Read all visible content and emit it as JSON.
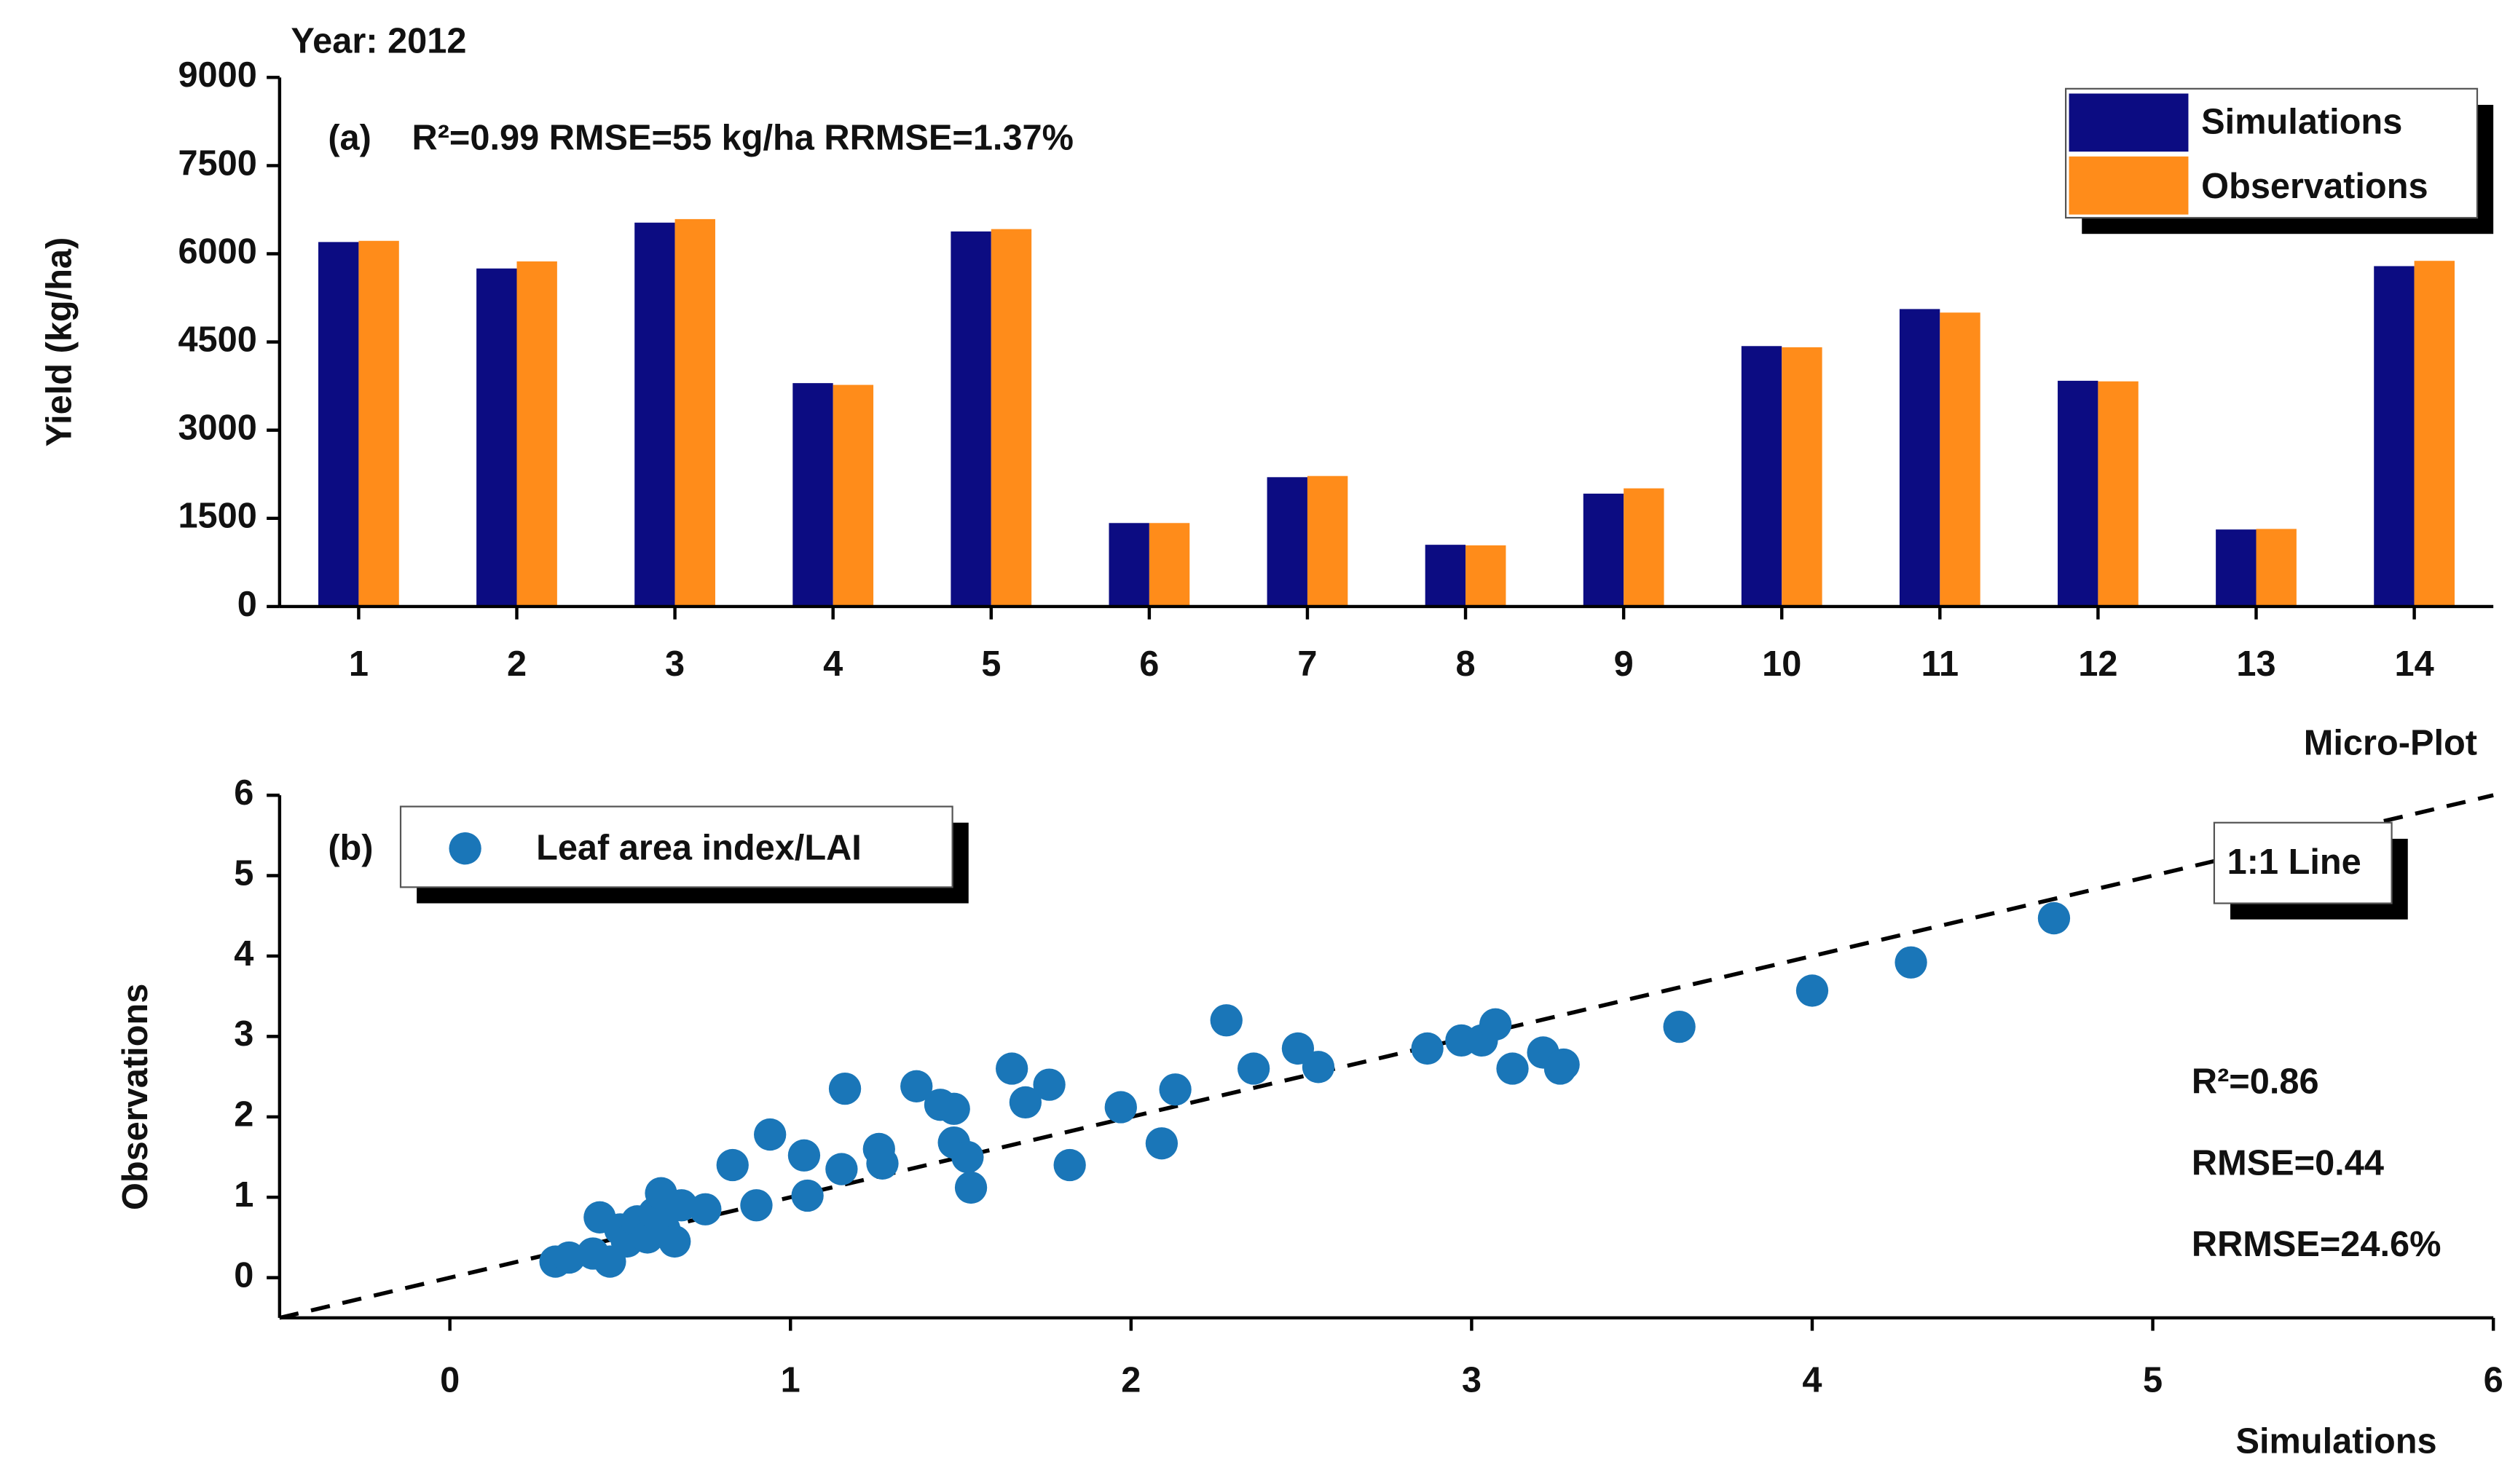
{
  "chart_data": [
    {
      "type": "bar",
      "title": "Year: 2012",
      "panel_label": "(a)",
      "annotation": "R²=0.99 RMSE=55 kg/ha RRMSE=1.37%",
      "x_label": "Micro-Plot",
      "y_label": "Yield (kg/ha)",
      "categories": [
        "1",
        "2",
        "3",
        "4",
        "5",
        "6",
        "7",
        "8",
        "9",
        "10",
        "11",
        "12",
        "13",
        "14"
      ],
      "series": [
        {
          "name": "Simulations",
          "color": "#0c0c82",
          "values": [
            6200,
            5750,
            6530,
            3800,
            6380,
            1420,
            2200,
            1050,
            1920,
            4430,
            5060,
            3840,
            1310,
            5790
          ]
        },
        {
          "name": "Observations",
          "color": "#ff8c1a",
          "values": [
            6220,
            5870,
            6590,
            3770,
            6420,
            1420,
            2220,
            1040,
            2010,
            4410,
            5000,
            3830,
            1320,
            5880
          ]
        }
      ],
      "ylim": [
        0,
        9000
      ],
      "yticks": [
        0,
        1500,
        3000,
        4500,
        6000,
        7500,
        9000
      ],
      "legend": "upper right"
    },
    {
      "type": "scatter",
      "panel_label": "(b)",
      "x_label": "Simulations",
      "y_label": "Observations",
      "reference_line": "1:1 Line",
      "stats": [
        "R²=0.86",
        "RMSE=0.44",
        "RRMSE=24.6%"
      ],
      "series": [
        {
          "name": "Leaf area index/LAI",
          "color": "#1a76b8",
          "x": [
            0.31,
            0.35,
            0.42,
            0.44,
            0.47,
            0.5,
            0.52,
            0.55,
            0.58,
            0.6,
            0.62,
            0.63,
            0.66,
            0.68,
            0.75,
            0.83,
            0.9,
            0.94,
            1.04,
            1.05,
            1.16,
            1.15,
            1.26,
            1.27,
            1.37,
            1.44,
            1.48,
            1.48,
            1.52,
            1.53,
            1.65,
            1.69,
            1.76,
            1.82,
            1.97,
            2.09,
            2.13,
            2.28,
            2.36,
            2.49,
            2.55,
            2.87,
            2.97,
            3.03,
            3.07,
            3.12,
            3.21,
            3.26,
            3.27,
            3.61,
            4.0,
            4.29,
            4.71
          ],
          "values": [
            0.2,
            0.25,
            0.3,
            0.75,
            0.2,
            0.6,
            0.45,
            0.7,
            0.5,
            0.8,
            1.05,
            0.6,
            0.45,
            0.9,
            0.85,
            1.4,
            0.9,
            1.78,
            1.52,
            1.02,
            2.35,
            1.35,
            1.6,
            1.42,
            2.38,
            2.15,
            2.1,
            1.68,
            1.5,
            1.12,
            2.6,
            2.18,
            2.4,
            1.4,
            2.12,
            1.67,
            2.34,
            3.2,
            2.6,
            2.85,
            2.62,
            2.85,
            2.95,
            2.95,
            3.15,
            2.6,
            2.8,
            2.6,
            2.65,
            3.12,
            3.57,
            3.92,
            4.47
          ]
        }
      ],
      "xlim": [
        -0.5,
        6
      ],
      "ylim": [
        -0.5,
        6
      ],
      "xticks": [
        0,
        1,
        2,
        3,
        4,
        5,
        6
      ],
      "yticks": [
        0,
        1,
        2,
        3,
        4,
        5,
        6
      ],
      "legend": "upper left"
    }
  ]
}
